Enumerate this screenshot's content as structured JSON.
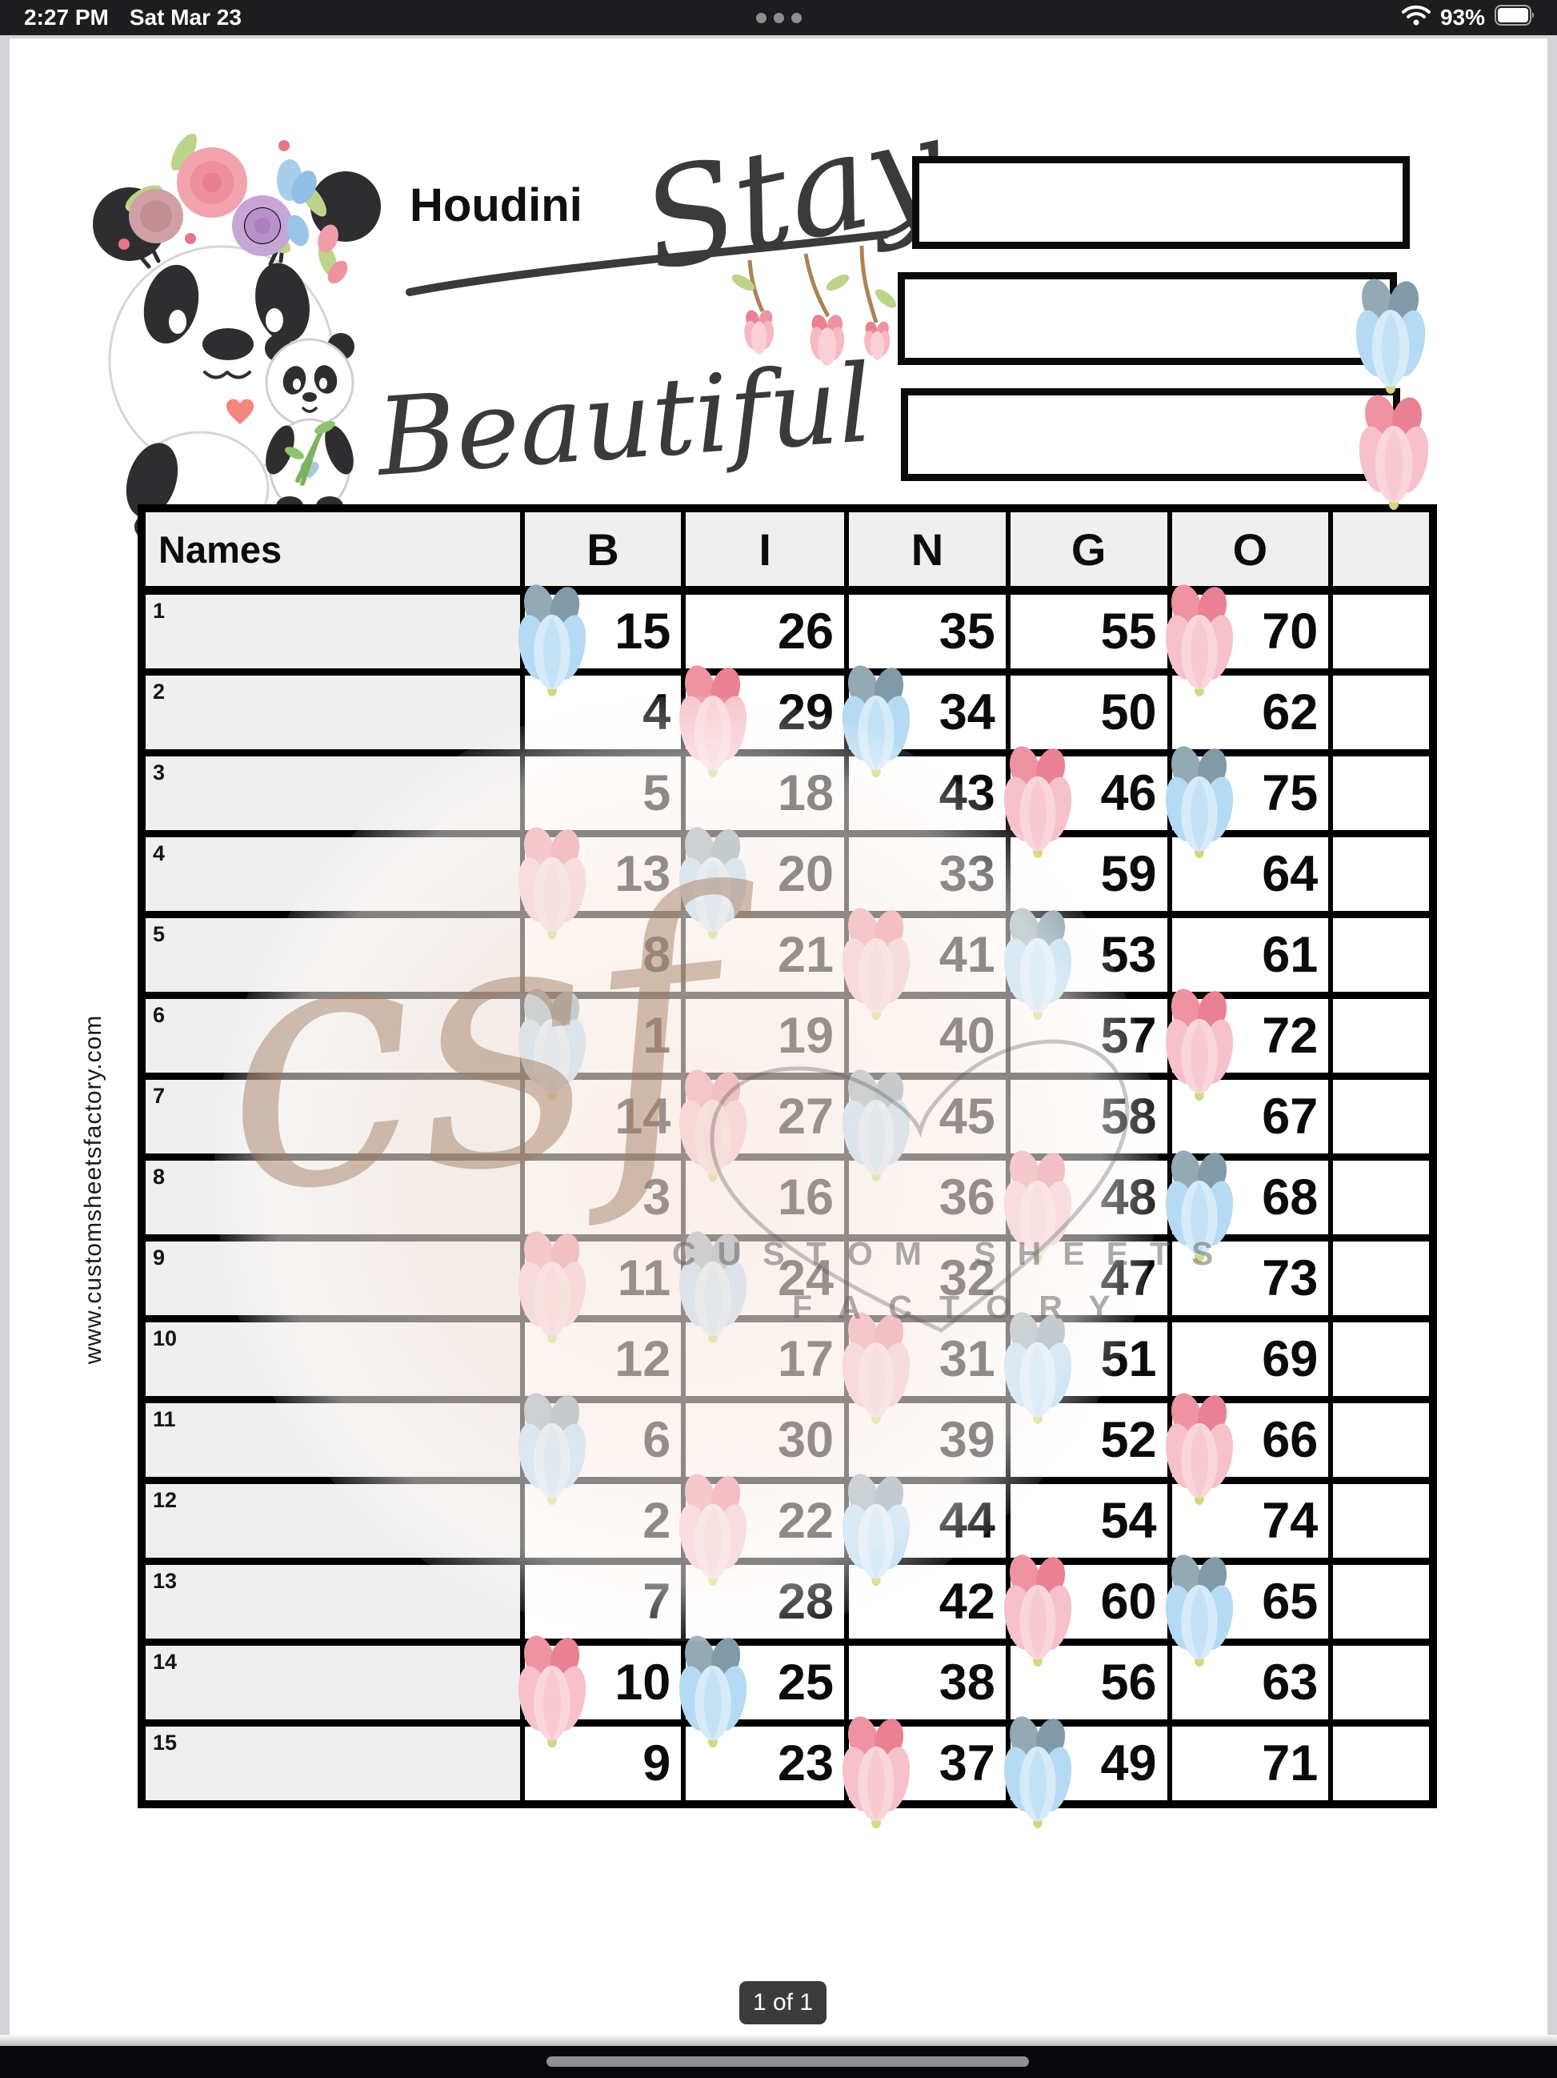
{
  "status_bar": {
    "time": "2:27 PM",
    "date": "Sat Mar 23",
    "battery_percent": "93%",
    "icons": [
      "ellipsis-icon",
      "wifi-icon",
      "battery-icon"
    ]
  },
  "header": {
    "player_name": "Houdini",
    "logo_word1": "Stay",
    "logo_word2": "Beautiful",
    "artwork": "panda-mom-and-baby-with-flower-crown",
    "info_boxes": [
      {
        "value": "",
        "marker": "none"
      },
      {
        "value": "",
        "marker": "blue"
      },
      {
        "value": "",
        "marker": "pink"
      }
    ]
  },
  "table": {
    "name_header": "Names",
    "columns": [
      "B",
      "I",
      "N",
      "G",
      "O"
    ],
    "rows": [
      {
        "label": "1",
        "name": "",
        "cells": [
          {
            "v": "15",
            "m": "blue"
          },
          {
            "v": "26",
            "m": null
          },
          {
            "v": "35",
            "m": null
          },
          {
            "v": "55",
            "m": null
          },
          {
            "v": "70",
            "m": "pink"
          }
        ]
      },
      {
        "label": "2",
        "name": "",
        "cells": [
          {
            "v": "4",
            "m": null
          },
          {
            "v": "29",
            "m": "pink"
          },
          {
            "v": "34",
            "m": "blue"
          },
          {
            "v": "50",
            "m": null
          },
          {
            "v": "62",
            "m": null
          }
        ]
      },
      {
        "label": "3",
        "name": "",
        "cells": [
          {
            "v": "5",
            "m": null
          },
          {
            "v": "18",
            "m": null
          },
          {
            "v": "43",
            "m": null
          },
          {
            "v": "46",
            "m": "pink"
          },
          {
            "v": "75",
            "m": "blue"
          }
        ]
      },
      {
        "label": "4",
        "name": "",
        "cells": [
          {
            "v": "13",
            "m": "pink"
          },
          {
            "v": "20",
            "m": "blue"
          },
          {
            "v": "33",
            "m": null
          },
          {
            "v": "59",
            "m": null
          },
          {
            "v": "64",
            "m": null
          }
        ]
      },
      {
        "label": "5",
        "name": "",
        "cells": [
          {
            "v": "8",
            "m": null
          },
          {
            "v": "21",
            "m": null
          },
          {
            "v": "41",
            "m": "pink"
          },
          {
            "v": "53",
            "m": "blue"
          },
          {
            "v": "61",
            "m": null
          }
        ]
      },
      {
        "label": "6",
        "name": "",
        "cells": [
          {
            "v": "1",
            "m": "blue"
          },
          {
            "v": "19",
            "m": null
          },
          {
            "v": "40",
            "m": null
          },
          {
            "v": "57",
            "m": null
          },
          {
            "v": "72",
            "m": "pink"
          }
        ]
      },
      {
        "label": "7",
        "name": "",
        "cells": [
          {
            "v": "14",
            "m": null
          },
          {
            "v": "27",
            "m": "pink"
          },
          {
            "v": "45",
            "m": "blue"
          },
          {
            "v": "58",
            "m": null
          },
          {
            "v": "67",
            "m": null
          }
        ]
      },
      {
        "label": "8",
        "name": "",
        "cells": [
          {
            "v": "3",
            "m": null
          },
          {
            "v": "16",
            "m": null
          },
          {
            "v": "36",
            "m": null
          },
          {
            "v": "48",
            "m": "pink"
          },
          {
            "v": "68",
            "m": "blue"
          }
        ]
      },
      {
        "label": "9",
        "name": "",
        "cells": [
          {
            "v": "11",
            "m": "pink"
          },
          {
            "v": "24",
            "m": "blue"
          },
          {
            "v": "32",
            "m": null
          },
          {
            "v": "47",
            "m": null
          },
          {
            "v": "73",
            "m": null
          }
        ]
      },
      {
        "label": "10",
        "name": "",
        "cells": [
          {
            "v": "12",
            "m": null
          },
          {
            "v": "17",
            "m": null
          },
          {
            "v": "31",
            "m": "pink"
          },
          {
            "v": "51",
            "m": "blue"
          },
          {
            "v": "69",
            "m": null
          }
        ]
      },
      {
        "label": "11",
        "name": "",
        "cells": [
          {
            "v": "6",
            "m": "blue"
          },
          {
            "v": "30",
            "m": null
          },
          {
            "v": "39",
            "m": null
          },
          {
            "v": "52",
            "m": null
          },
          {
            "v": "66",
            "m": "pink"
          }
        ]
      },
      {
        "label": "12",
        "name": "",
        "cells": [
          {
            "v": "2",
            "m": null
          },
          {
            "v": "22",
            "m": "pink"
          },
          {
            "v": "44",
            "m": "blue"
          },
          {
            "v": "54",
            "m": null
          },
          {
            "v": "74",
            "m": null
          }
        ]
      },
      {
        "label": "13",
        "name": "",
        "cells": [
          {
            "v": "7",
            "m": null
          },
          {
            "v": "28",
            "m": null
          },
          {
            "v": "42",
            "m": null
          },
          {
            "v": "60",
            "m": "pink"
          },
          {
            "v": "65",
            "m": "blue"
          }
        ]
      },
      {
        "label": "14",
        "name": "",
        "cells": [
          {
            "v": "10",
            "m": "pink"
          },
          {
            "v": "25",
            "m": "blue"
          },
          {
            "v": "38",
            "m": null
          },
          {
            "v": "56",
            "m": null
          },
          {
            "v": "63",
            "m": null
          }
        ]
      },
      {
        "label": "15",
        "name": "",
        "cells": [
          {
            "v": "9",
            "m": null
          },
          {
            "v": "23",
            "m": null
          },
          {
            "v": "37",
            "m": "pink"
          },
          {
            "v": "49",
            "m": "blue"
          },
          {
            "v": "71",
            "m": null
          }
        ]
      }
    ]
  },
  "watermark": {
    "script": "csf",
    "line1": "CUSTOM SHEETS",
    "line2": "FACTORY",
    "url": "www.customsheetsfactory.com"
  },
  "footer": {
    "page_indicator": "1 of 1"
  },
  "colors": {
    "marker_pink": "#f6c1cb",
    "marker_pink_dark": "#ea8093",
    "marker_blue": "#b5daf3",
    "marker_blue_dark": "#819aa7",
    "cell_header_bg": "#efefef",
    "grid_border": "#000000",
    "status_bar_bg": "#1d1d1f",
    "watermark_tan": "#a17c61"
  }
}
